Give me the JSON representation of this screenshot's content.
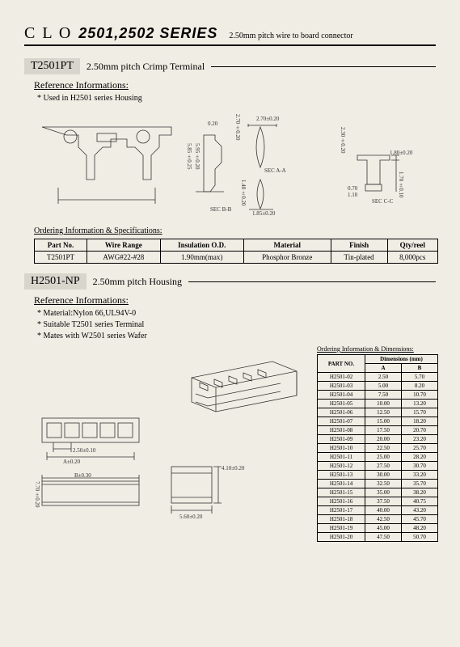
{
  "header": {
    "brand": "C L O",
    "series": "2501,2502 SERIES",
    "subtitle": "2.50mm pitch wire to board connector"
  },
  "section1": {
    "part": "T2501PT",
    "title": "2.50mm pitch Crimp Terminal",
    "ref_label": "Reference Informations:",
    "ref_notes": [
      "* Used in H2501 series Housing"
    ],
    "dims": {
      "d1": "0.20",
      "d2": "2.70±0.20",
      "d3": "2.70±0.20",
      "d4": "5.85±0.25",
      "d5": "5.95±0.20",
      "d6": "1.40±0.20",
      "d7": "SEC A-A",
      "d8": "1.85±0.20",
      "d9": "SEC B-B",
      "d10": "2.30±0.20",
      "d11": "1.80±0.20",
      "d12": "0.70",
      "d13": "1.10",
      "d14": "1.70±0.10",
      "d15": "SEC C-C"
    },
    "ordering_label": "Ordering Information & Specifications:",
    "table": {
      "headers": [
        "Part No.",
        "Wire Range",
        "Insulation O.D.",
        "Material",
        "Finish",
        "Qty/reel"
      ],
      "row": [
        "T2501PT",
        "AWG#22-#28",
        "1.90mm(max)",
        "Phosphor Bronze",
        "Tin-plated",
        "8,000pcs"
      ]
    }
  },
  "section2": {
    "part": "H2501-NP",
    "title": "2.50mm pitch Housing",
    "ref_label": "Reference Informations:",
    "ref_notes": [
      "* Material:Nylon 66,UL94V-0",
      "* Suitable T2501 series Terminal",
      "* Mates with W2501 series Wafer"
    ],
    "dims": {
      "d1": "2.50±0.10",
      "d2": "A±0.20",
      "d3": "B±0.30",
      "d4": "7.70±0.20",
      "d5": "4.10±0.20",
      "d6": "5.60±0.20"
    },
    "dims_title": "Ordering Information & Dimensions:",
    "table": {
      "headers": [
        "PART NO.",
        "A",
        "B"
      ],
      "subheader": "Dimensions (mm)",
      "rows": [
        [
          "H2501-02",
          "2.50",
          "5.70"
        ],
        [
          "H2501-03",
          "5.00",
          "8.20"
        ],
        [
          "H2501-04",
          "7.50",
          "10.70"
        ],
        [
          "H2501-05",
          "10.00",
          "13.20"
        ],
        [
          "H2501-06",
          "12.50",
          "15.70"
        ],
        [
          "H2501-07",
          "15.00",
          "18.20"
        ],
        [
          "H2501-08",
          "17.50",
          "20.70"
        ],
        [
          "H2501-09",
          "20.00",
          "23.20"
        ],
        [
          "H2501-10",
          "22.50",
          "25.70"
        ],
        [
          "H2501-11",
          "25.00",
          "28.20"
        ],
        [
          "H2501-12",
          "27.50",
          "30.70"
        ],
        [
          "H2501-13",
          "30.00",
          "33.20"
        ],
        [
          "H2501-14",
          "32.50",
          "35.70"
        ],
        [
          "H2501-15",
          "35.00",
          "38.20"
        ],
        [
          "H2501-16",
          "37.50",
          "40.75"
        ],
        [
          "H2501-17",
          "40.00",
          "43.20"
        ],
        [
          "H2501-18",
          "42.50",
          "45.70"
        ],
        [
          "H2501-19",
          "45.00",
          "48.20"
        ],
        [
          "H2501-20",
          "47.50",
          "50.70"
        ]
      ]
    }
  },
  "colors": {
    "bg": "#f0ede4",
    "line": "#222"
  }
}
